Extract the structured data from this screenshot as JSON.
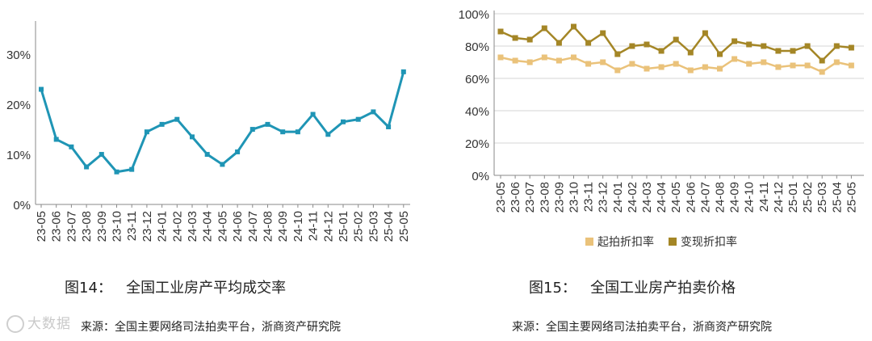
{
  "chart_data": [
    {
      "type": "line",
      "yticks": [
        "0%",
        "10%",
        "20%",
        "30%"
      ],
      "ylim": [
        0,
        36
      ],
      "categories": [
        "23-05",
        "23-06",
        "23-07",
        "23-08",
        "23-09",
        "23-10",
        "23-11",
        "23-12",
        "24-01",
        "24-02",
        "24-03",
        "24-04",
        "24-05",
        "24-06",
        "24-07",
        "24-08",
        "24-09",
        "24-10",
        "24-11",
        "24-12",
        "25-01",
        "25-02",
        "25-03",
        "25-04",
        "25-05"
      ],
      "series": [
        {
          "values": [
            23,
            13,
            11.5,
            7.5,
            10,
            6.5,
            7,
            14.5,
            16,
            17,
            13.5,
            10,
            8,
            10.5,
            15,
            16,
            14.5,
            14.5,
            18,
            14,
            16.5,
            17,
            18.5,
            15.5,
            26.5
          ],
          "color": "#1f95b5"
        }
      ],
      "grid": false,
      "legend": "none"
    },
    {
      "type": "line",
      "yticks": [
        "0%",
        "20%",
        "40%",
        "60%",
        "80%",
        "100%"
      ],
      "ylim": [
        0,
        100
      ],
      "categories": [
        "23-05",
        "23-06",
        "23-07",
        "23-08",
        "23-09",
        "23-10",
        "23-11",
        "23-12",
        "24-01",
        "24-02",
        "24-03",
        "24-04",
        "24-05",
        "24-06",
        "24-07",
        "24-08",
        "24-09",
        "24-10",
        "24-11",
        "24-12",
        "25-01",
        "25-02",
        "25-03",
        "25-04",
        "25-05"
      ],
      "series": [
        {
          "name": "起拍折扣率",
          "color": "#eac27a",
          "values": [
            73,
            71,
            70,
            73,
            71,
            73,
            69,
            70,
            65,
            69,
            66,
            67,
            69,
            65,
            67,
            66,
            72,
            69,
            70,
            67,
            68,
            68,
            64,
            70,
            68
          ]
        },
        {
          "name": "变现折扣率",
          "color": "#a48626",
          "values": [
            89,
            85,
            84,
            91,
            82,
            92,
            82,
            88,
            75,
            80,
            81,
            77,
            84,
            76,
            88,
            75,
            83,
            81,
            80,
            77,
            77,
            80,
            71,
            80,
            79
          ]
        }
      ],
      "grid": true,
      "legend": "bottom-center"
    }
  ],
  "captions": {
    "left_figure": "图14：   全国工业房产平均成交率",
    "right_figure": "图15：   全国工业房产拍卖价格",
    "left_source": "来源：全国主要网络司法拍卖平台，浙商资产研究院",
    "right_source": "来源：全国主要网络司法拍卖平台，浙商资产研究院"
  },
  "watermark": "大数据"
}
